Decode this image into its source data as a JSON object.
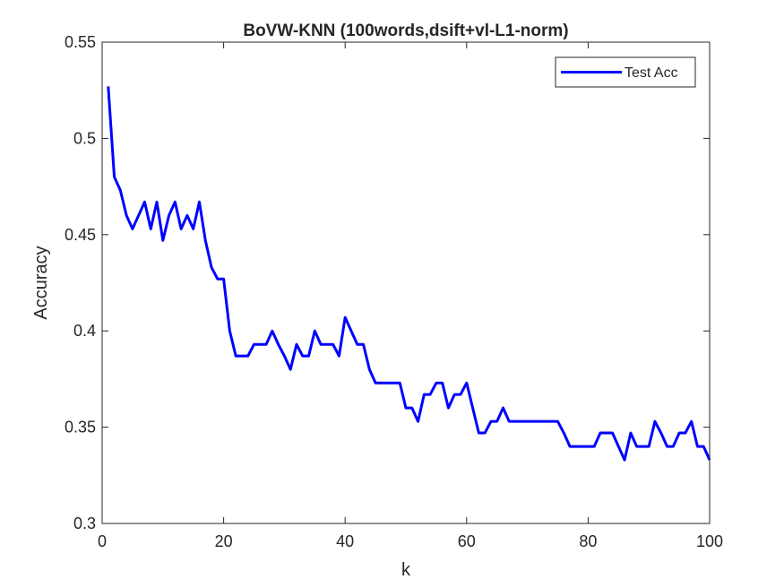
{
  "chart_data": {
    "type": "line",
    "title": "BoVW-KNN (100words,dsift+vl-L1-norm)",
    "xlabel": "k",
    "ylabel": "Accuracy",
    "xlim": [
      0,
      100
    ],
    "ylim": [
      0.3,
      0.55
    ],
    "xticks": [
      0,
      20,
      40,
      60,
      80,
      100
    ],
    "xtick_labels": [
      "0",
      "20",
      "40",
      "60",
      "80",
      "100"
    ],
    "yticks": [
      0.3,
      0.35,
      0.4,
      0.45,
      0.5,
      0.55
    ],
    "ytick_labels": [
      "0.3",
      "0.35",
      "0.4",
      "0.45",
      "0.5",
      "0.55"
    ],
    "grid": false,
    "legend_position": "top-right",
    "series": [
      {
        "name": "Test Acc",
        "color": "#0000ff",
        "x": [
          1,
          2,
          3,
          4,
          5,
          6,
          7,
          8,
          9,
          10,
          11,
          12,
          13,
          14,
          15,
          16,
          17,
          18,
          19,
          20,
          21,
          22,
          23,
          24,
          25,
          26,
          27,
          28,
          29,
          30,
          31,
          32,
          33,
          34,
          35,
          36,
          37,
          38,
          39,
          40,
          41,
          42,
          43,
          44,
          45,
          46,
          47,
          48,
          49,
          50,
          51,
          52,
          53,
          54,
          55,
          56,
          57,
          58,
          59,
          60,
          61,
          62,
          63,
          64,
          65,
          66,
          67,
          68,
          69,
          70,
          71,
          72,
          73,
          74,
          75,
          76,
          77,
          78,
          79,
          80,
          81,
          82,
          83,
          84,
          85,
          86,
          87,
          88,
          89,
          90,
          91,
          92,
          93,
          94,
          95,
          96,
          97,
          98,
          99,
          100
        ],
        "y": [
          0.527,
          0.48,
          0.473,
          0.46,
          0.453,
          0.46,
          0.467,
          0.453,
          0.467,
          0.447,
          0.46,
          0.467,
          0.453,
          0.46,
          0.453,
          0.467,
          0.447,
          0.433,
          0.427,
          0.427,
          0.4,
          0.387,
          0.387,
          0.387,
          0.393,
          0.393,
          0.393,
          0.4,
          0.393,
          0.387,
          0.38,
          0.393,
          0.387,
          0.387,
          0.4,
          0.393,
          0.393,
          0.393,
          0.387,
          0.407,
          0.4,
          0.393,
          0.393,
          0.38,
          0.373,
          0.373,
          0.373,
          0.373,
          0.373,
          0.36,
          0.36,
          0.353,
          0.367,
          0.367,
          0.373,
          0.373,
          0.36,
          0.367,
          0.367,
          0.373,
          0.36,
          0.347,
          0.347,
          0.353,
          0.353,
          0.36,
          0.353,
          0.353,
          0.353,
          0.353,
          0.353,
          0.353,
          0.353,
          0.353,
          0.353,
          0.347,
          0.34,
          0.34,
          0.34,
          0.34,
          0.34,
          0.347,
          0.347,
          0.347,
          0.34,
          0.333,
          0.347,
          0.34,
          0.34,
          0.34,
          0.353,
          0.347,
          0.34,
          0.34,
          0.347,
          0.347,
          0.353,
          0.34,
          0.34,
          0.333
        ]
      }
    ]
  }
}
